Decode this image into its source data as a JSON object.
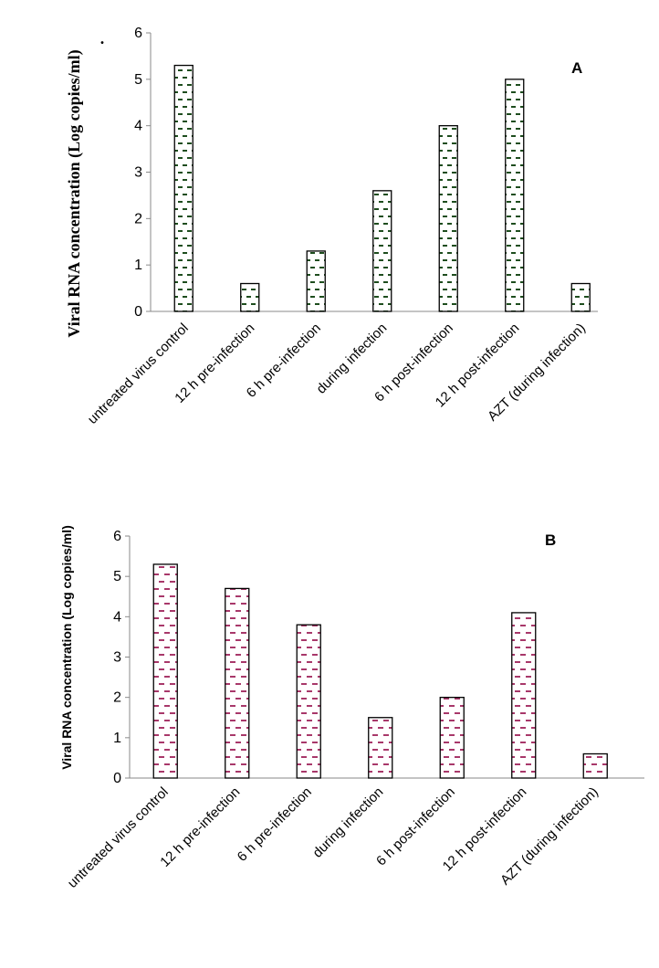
{
  "chart_data": [
    {
      "type": "bar",
      "panel_label": "A",
      "ylabel": "Viral RNA concentration (Log copies/ml)",
      "ylabel_suffix": ".",
      "categories": [
        "untreated virus control",
        "12 h pre-infection",
        "6 h pre-infection",
        "during infection",
        "6 h post-infection",
        "12 h post-infection",
        "AZT (during infection)"
      ],
      "series": [
        {
          "values": [
            5.3,
            0.6,
            1.3,
            2.6,
            4.0,
            5.0,
            0.6
          ]
        }
      ],
      "ylim": [
        0,
        6
      ],
      "yticks": [
        "0",
        "1",
        "2",
        "3",
        "4",
        "5",
        "6"
      ],
      "grid": false,
      "bar_pattern_color": "#1e4d1e"
    },
    {
      "type": "bar",
      "panel_label": "B",
      "ylabel": "Viral RNA concentration (Log copies/ml)",
      "categories": [
        "untreated virus control",
        "12 h pre-infection",
        "6 h pre-infection",
        "during infection",
        "6 h post-infection",
        "12 h post-infection",
        "AZT (during infection)"
      ],
      "series": [
        {
          "values": [
            5.3,
            4.7,
            3.8,
            1.5,
            2.0,
            4.1,
            0.6
          ]
        }
      ],
      "ylim": [
        0,
        6
      ],
      "yticks": [
        "0",
        "1",
        "2",
        "3",
        "4",
        "5",
        "6"
      ],
      "grid": false,
      "bar_pattern_color": "#a8386a"
    }
  ]
}
